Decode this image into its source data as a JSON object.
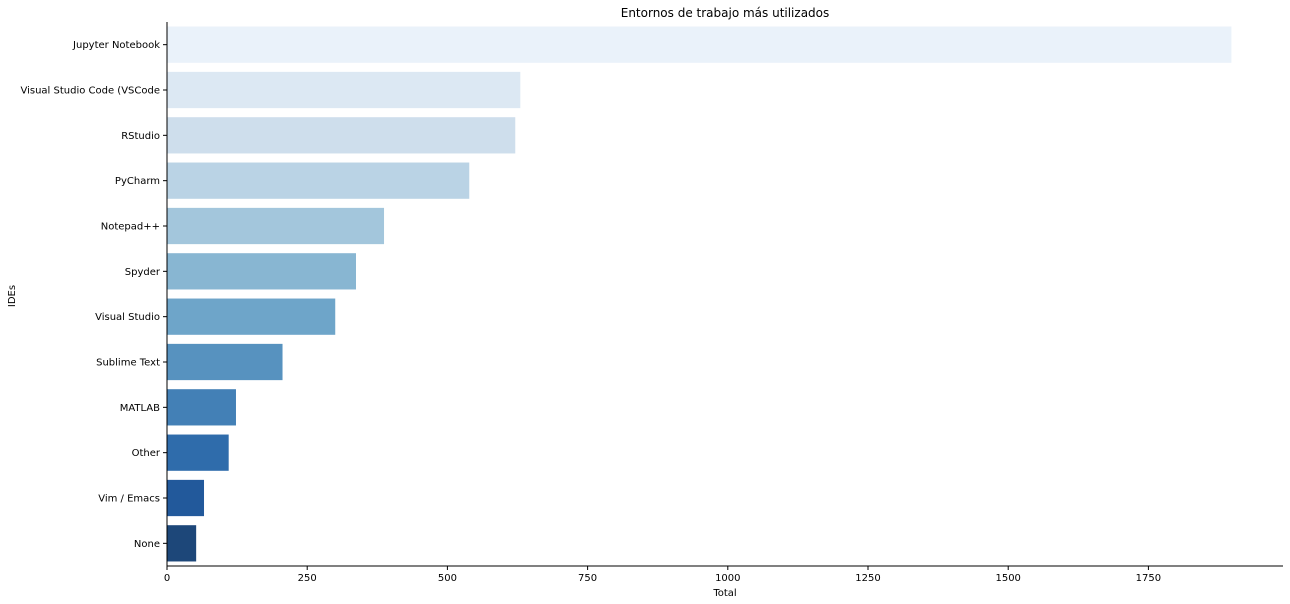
{
  "chart_data": {
    "type": "bar",
    "orientation": "horizontal",
    "title": "Entornos de trabajo más utilizados",
    "xlabel": "Total",
    "ylabel": "IDEs",
    "xlim": [
      0,
      1990
    ],
    "xticks": [
      0,
      250,
      500,
      750,
      1000,
      1250,
      1500,
      1750
    ],
    "grid": false,
    "categories": [
      "Jupyter Notebook",
      "Visual Studio Code (VSCode",
      "RStudio ",
      "PyCharm ",
      "Notepad++ ",
      "Spyder ",
      "Visual Studio ",
      "Sublime Text ",
      "MATLAB ",
      "Other",
      "Vim / Emacs ",
      "None"
    ],
    "values": [
      1898,
      630,
      621,
      539,
      387,
      337,
      300,
      206,
      123,
      110,
      66,
      52
    ],
    "colors": [
      "#eaf2fa",
      "#dce8f3",
      "#cedeec",
      "#bad3e5",
      "#a3c6dc",
      "#88b6d2",
      "#6ea5c9",
      "#5792bf",
      "#4380b6",
      "#2f6cab",
      "#22599b",
      "#1d4779"
    ]
  }
}
